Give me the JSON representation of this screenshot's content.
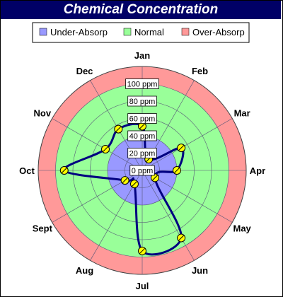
{
  "colors": {
    "title_bg": "#000066",
    "under": "#9999ff",
    "normal": "#99ff99",
    "over": "#ff9999",
    "line": "#000080",
    "marker": "#ffff00"
  },
  "chart_data": {
    "type": "radar",
    "title": "Chemical Concentration",
    "categories": [
      "Jan",
      "Feb",
      "Mar",
      "Apr",
      "May",
      "Jun",
      "Jul",
      "Aug",
      "Sept",
      "Oct",
      "Nov",
      "Dec"
    ],
    "r_ticks": [
      "0 ppm",
      "20 ppm",
      "40 ppm",
      "60 ppm",
      "80 ppm",
      "100 ppm"
    ],
    "rlim": [
      0,
      120
    ],
    "zones": [
      {
        "name": "Under-Absorp",
        "from": 0,
        "to": 40,
        "color": "#9999ff"
      },
      {
        "name": "Normal",
        "from": 40,
        "to": 100,
        "color": "#99ff99"
      },
      {
        "name": "Over-Absorp",
        "from": 100,
        "to": 120,
        "color": "#ff9999"
      }
    ],
    "series": [
      {
        "values": [
          51,
          15,
          52,
          40,
          17,
          90,
          93,
          18,
          23,
          90,
          49,
          55
        ]
      }
    ],
    "grid": true,
    "legend_position": "top"
  }
}
